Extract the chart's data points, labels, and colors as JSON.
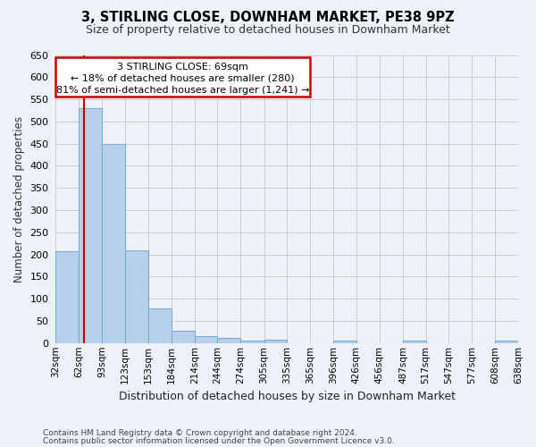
{
  "title": "3, STIRLING CLOSE, DOWNHAM MARKET, PE38 9PZ",
  "subtitle": "Size of property relative to detached houses in Downham Market",
  "xlabel": "Distribution of detached houses by size in Downham Market",
  "ylabel": "Number of detached properties",
  "footnote1": "Contains HM Land Registry data © Crown copyright and database right 2024.",
  "footnote2": "Contains public sector information licensed under the Open Government Licence v3.0.",
  "annotation_line1": "3 STIRLING CLOSE: 69sqm",
  "annotation_line2": "← 18% of detached houses are smaller (280)",
  "annotation_line3": "81% of semi-detached houses are larger (1,241) →",
  "property_size": 69,
  "bin_edges": [
    32,
    62,
    93,
    123,
    153,
    184,
    214,
    244,
    274,
    305,
    335,
    365,
    396,
    426,
    456,
    487,
    517,
    547,
    577,
    608,
    638
  ],
  "bin_counts": [
    207,
    530,
    450,
    210,
    78,
    27,
    15,
    12,
    5,
    8,
    0,
    0,
    6,
    0,
    0,
    5,
    0,
    0,
    0,
    5
  ],
  "bar_color": "#b8d0ea",
  "bar_edge_color": "#7aadd4",
  "vline_color": "#cc0000",
  "annotation_box_edge_color": "#cc0000",
  "annotation_box_face_color": "#ffffff",
  "annotation_text_color": "#000000",
  "grid_color": "#cccccc",
  "background_color": "#eef2f8",
  "ylim": [
    0,
    650
  ],
  "yticks": [
    0,
    50,
    100,
    150,
    200,
    250,
    300,
    350,
    400,
    450,
    500,
    550,
    600,
    650
  ]
}
